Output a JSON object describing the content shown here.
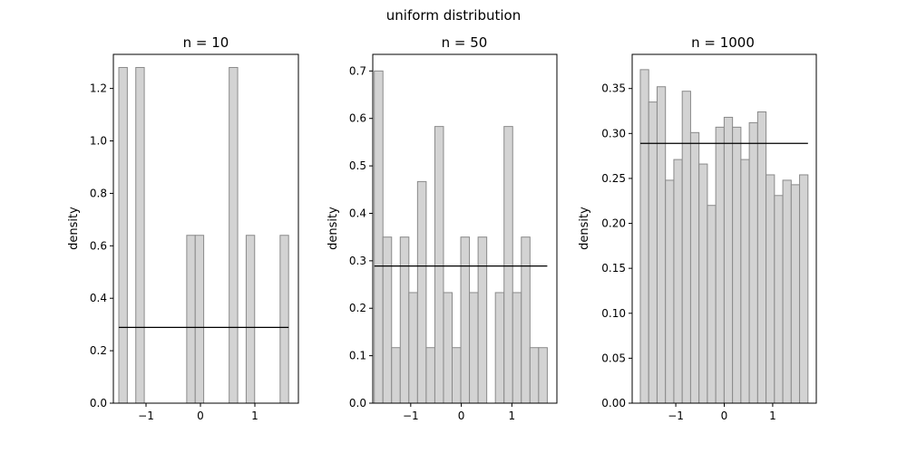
{
  "figure_title": "uniform distribution",
  "chart_data": [
    {
      "type": "bar",
      "title": "n = 10",
      "xlabel": "",
      "ylabel": "density",
      "xlim": [
        -1.6,
        1.8
      ],
      "ylim": [
        0,
        1.33
      ],
      "xticks": [
        -1,
        0,
        1
      ],
      "xtick_labels": [
        "−1",
        "0",
        "1"
      ],
      "yticks": [
        0,
        0.2,
        0.4,
        0.6,
        0.8,
        1.0,
        1.2
      ],
      "ytick_labels": [
        "0.0",
        "0.2",
        "0.4",
        "0.6",
        "0.8",
        "1.0",
        "1.2"
      ],
      "bin_edges": [
        -1.5,
        -1.344,
        -1.188,
        -1.032,
        -0.876,
        -0.72,
        -0.564,
        -0.408,
        -0.252,
        -0.096,
        0.06,
        0.216,
        0.372,
        0.528,
        0.684,
        0.84,
        0.996,
        1.152,
        1.308,
        1.464,
        1.62
      ],
      "values": [
        1.28,
        0,
        1.28,
        0,
        0,
        0,
        0,
        0,
        0.64,
        0.64,
        0,
        0,
        0,
        1.28,
        0,
        0.64,
        0,
        0,
        0,
        0.64
      ],
      "reference_density": 0.289,
      "reference_range": [
        -1.5,
        1.62
      ],
      "bar_color": "#d3d3d3",
      "edge_color": "#8a8a8a",
      "line_color": "#000000"
    },
    {
      "type": "bar",
      "title": "n = 50",
      "xlabel": "",
      "ylabel": "density",
      "xlim": [
        -1.75,
        1.89
      ],
      "ylim": [
        0,
        0.735
      ],
      "xticks": [
        -1,
        0,
        1
      ],
      "xtick_labels": [
        "−1",
        "0",
        "1"
      ],
      "yticks": [
        0,
        0.1,
        0.2,
        0.3,
        0.4,
        0.5,
        0.6,
        0.7
      ],
      "ytick_labels": [
        "0.0",
        "0.1",
        "0.2",
        "0.3",
        "0.4",
        "0.5",
        "0.6",
        "0.7"
      ],
      "bin_edges": [
        -1.72,
        -1.549,
        -1.378,
        -1.207,
        -1.036,
        -0.865,
        -0.694,
        -0.523,
        -0.352,
        -0.181,
        -0.01,
        0.161,
        0.332,
        0.503,
        0.674,
        0.845,
        1.016,
        1.187,
        1.358,
        1.529,
        1.7
      ],
      "values": [
        0.7,
        0.35,
        0.117,
        0.35,
        0.233,
        0.467,
        0.117,
        0.583,
        0.233,
        0.117,
        0.35,
        0.233,
        0.35,
        0,
        0.233,
        0.583,
        0.233,
        0.35,
        0.117,
        0.117
      ],
      "reference_density": 0.289,
      "reference_range": [
        -1.72,
        1.7
      ],
      "bar_color": "#d3d3d3",
      "edge_color": "#8a8a8a",
      "line_color": "#000000"
    },
    {
      "type": "bar",
      "title": "n = 1000",
      "xlabel": "",
      "ylabel": "density",
      "xlim": [
        -1.9,
        1.9
      ],
      "ylim": [
        0,
        0.388
      ],
      "xticks": [
        -1,
        0,
        1
      ],
      "xtick_labels": [
        "−1",
        "0",
        "1"
      ],
      "yticks": [
        0,
        0.05,
        0.1,
        0.15,
        0.2,
        0.25,
        0.3,
        0.35
      ],
      "ytick_labels": [
        "0.00",
        "0.05",
        "0.10",
        "0.15",
        "0.20",
        "0.25",
        "0.30",
        "0.35"
      ],
      "bin_edges": [
        -1.732,
        -1.559,
        -1.386,
        -1.213,
        -1.04,
        -0.867,
        -0.694,
        -0.521,
        -0.348,
        -0.175,
        -0.002,
        0.171,
        0.344,
        0.517,
        0.69,
        0.863,
        1.036,
        1.209,
        1.382,
        1.555,
        1.728
      ],
      "values": [
        0.371,
        0.335,
        0.352,
        0.248,
        0.271,
        0.347,
        0.301,
        0.266,
        0.22,
        0.307,
        0.318,
        0.307,
        0.271,
        0.312,
        0.324,
        0.254,
        0.231,
        0.248,
        0.243,
        0.254
      ],
      "reference_density": 0.289,
      "reference_range": [
        -1.732,
        1.728
      ],
      "bar_color": "#d3d3d3",
      "edge_color": "#8a8a8a",
      "line_color": "#000000"
    }
  ]
}
